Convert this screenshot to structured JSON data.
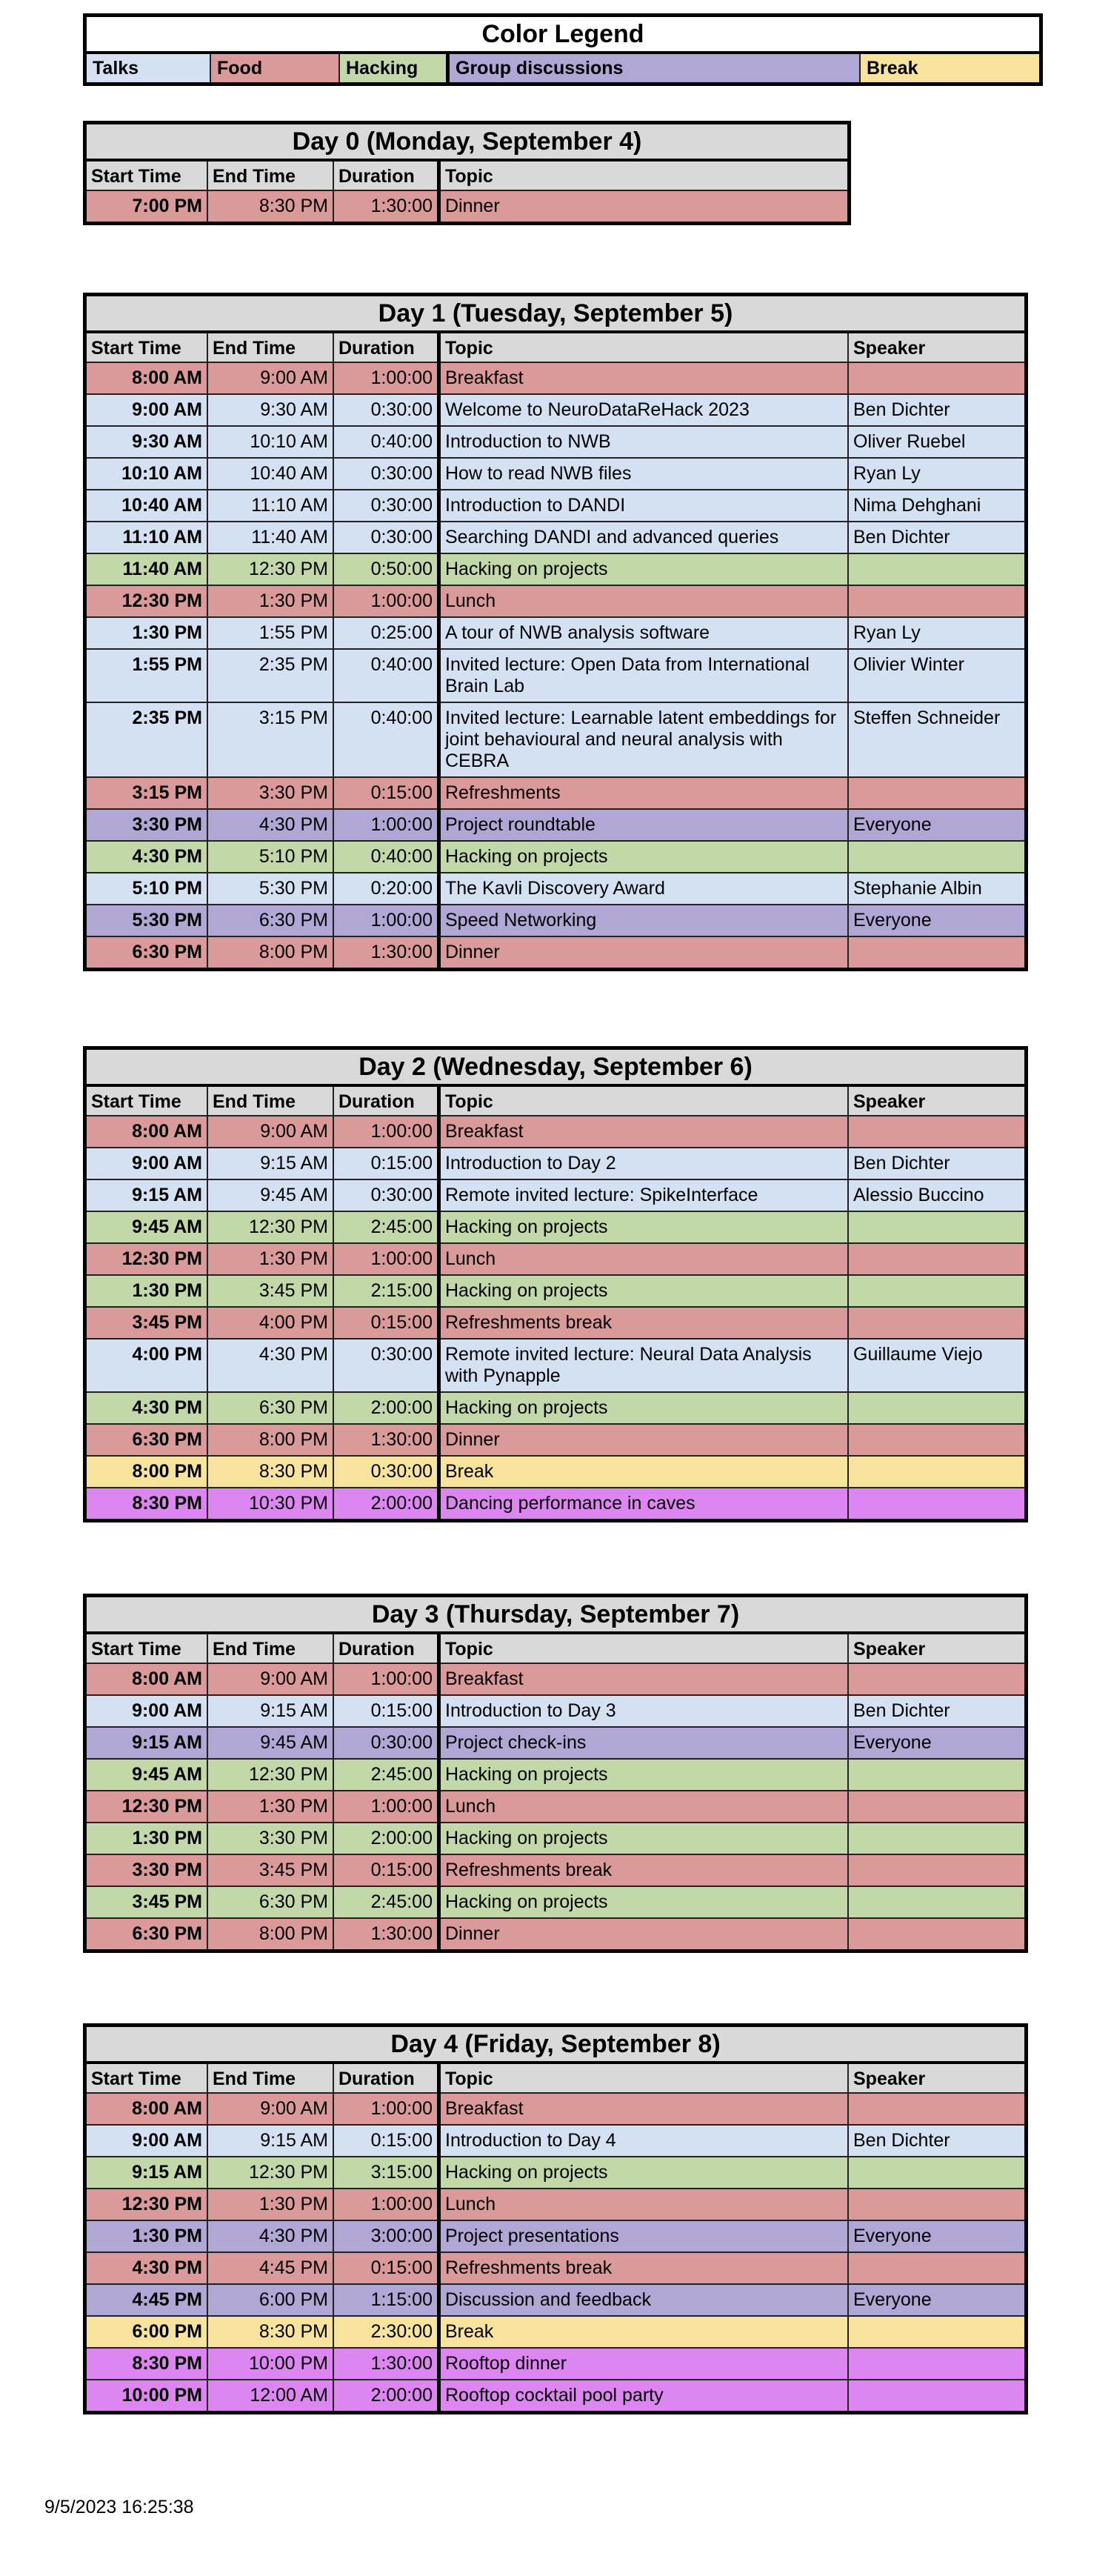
{
  "colors": {
    "talks": "#d3e1f2",
    "food": "#d99a99",
    "hacking": "#c2d8a8",
    "group": "#b0a7d4",
    "break": "#f8e39d",
    "party": "#dd86f2",
    "header": "#d9d9d9"
  },
  "legend": {
    "title": "Color Legend",
    "items": [
      {
        "label": "Talks",
        "category": "talks"
      },
      {
        "label": "Food",
        "category": "food"
      },
      {
        "label": "Hacking",
        "category": "hacking"
      },
      {
        "label": "Group discussions",
        "category": "group"
      },
      {
        "label": "Break",
        "category": "break"
      }
    ]
  },
  "columns": [
    "Start Time",
    "End Time",
    "Duration",
    "Topic",
    "Speaker"
  ],
  "days": [
    {
      "title": "Day 0 (Monday, September 4)",
      "has_speaker": false,
      "rows": [
        [
          "7:00 PM",
          "8:30 PM",
          "1:30:00",
          "Dinner",
          "",
          "food"
        ]
      ]
    },
    {
      "title": "Day 1 (Tuesday, September 5)",
      "has_speaker": true,
      "rows": [
        [
          "8:00 AM",
          "9:00 AM",
          "1:00:00",
          "Breakfast",
          "",
          "food"
        ],
        [
          "9:00 AM",
          "9:30 AM",
          "0:30:00",
          "Welcome to NeuroDataReHack 2023",
          "Ben Dichter",
          "talks"
        ],
        [
          "9:30 AM",
          "10:10 AM",
          "0:40:00",
          "Introduction to NWB",
          "Oliver Ruebel",
          "talks"
        ],
        [
          "10:10 AM",
          "10:40 AM",
          "0:30:00",
          "How to read NWB files",
          "Ryan Ly",
          "talks"
        ],
        [
          "10:40 AM",
          "11:10 AM",
          "0:30:00",
          "Introduction to DANDI",
          "Nima Dehghani",
          "talks"
        ],
        [
          "11:10 AM",
          "11:40 AM",
          "0:30:00",
          "Searching DANDI and advanced queries",
          "Ben Dichter",
          "talks"
        ],
        [
          "11:40 AM",
          "12:30 PM",
          "0:50:00",
          "Hacking on projects",
          "",
          "hacking"
        ],
        [
          "12:30 PM",
          "1:30 PM",
          "1:00:00",
          "Lunch",
          "",
          "food"
        ],
        [
          "1:30 PM",
          "1:55 PM",
          "0:25:00",
          "A tour of NWB analysis software",
          "Ryan Ly",
          "talks"
        ],
        [
          "1:55 PM",
          "2:35 PM",
          "0:40:00",
          "Invited lecture: Open Data from International Brain Lab",
          "Olivier Winter",
          "talks"
        ],
        [
          "2:35 PM",
          "3:15 PM",
          "0:40:00",
          "Invited lecture: Learnable latent embeddings for joint behavioural and neural analysis with CEBRA",
          "Steffen Schneider",
          "talks"
        ],
        [
          "3:15 PM",
          "3:30 PM",
          "0:15:00",
          "Refreshments",
          "",
          "food"
        ],
        [
          "3:30 PM",
          "4:30 PM",
          "1:00:00",
          "Project roundtable",
          "Everyone",
          "group"
        ],
        [
          "4:30 PM",
          "5:10 PM",
          "0:40:00",
          "Hacking on projects",
          "",
          "hacking"
        ],
        [
          "5:10 PM",
          "5:30 PM",
          "0:20:00",
          "The Kavli Discovery Award",
          "Stephanie Albin",
          "talks"
        ],
        [
          "5:30 PM",
          "6:30 PM",
          "1:00:00",
          "Speed Networking",
          "Everyone",
          "group"
        ],
        [
          "6:30 PM",
          "8:00 PM",
          "1:30:00",
          "Dinner",
          "",
          "food"
        ]
      ]
    },
    {
      "title": "Day 2 (Wednesday, September 6)",
      "has_speaker": true,
      "rows": [
        [
          "8:00 AM",
          "9:00 AM",
          "1:00:00",
          "Breakfast",
          "",
          "food"
        ],
        [
          "9:00 AM",
          "9:15 AM",
          "0:15:00",
          "Introduction to Day 2",
          "Ben Dichter",
          "talks"
        ],
        [
          "9:15 AM",
          "9:45 AM",
          "0:30:00",
          "Remote invited lecture: SpikeInterface",
          "Alessio Buccino",
          "talks"
        ],
        [
          "9:45 AM",
          "12:30 PM",
          "2:45:00",
          "Hacking on projects",
          "",
          "hacking"
        ],
        [
          "12:30 PM",
          "1:30 PM",
          "1:00:00",
          "Lunch",
          "",
          "food"
        ],
        [
          "1:30 PM",
          "3:45 PM",
          "2:15:00",
          "Hacking on projects",
          "",
          "hacking"
        ],
        [
          "3:45 PM",
          "4:00 PM",
          "0:15:00",
          "Refreshments break",
          "",
          "food"
        ],
        [
          "4:00 PM",
          "4:30 PM",
          "0:30:00",
          "Remote invited lecture: Neural Data Analysis with Pynapple",
          "Guillaume Viejo",
          "talks"
        ],
        [
          "4:30 PM",
          "6:30 PM",
          "2:00:00",
          "Hacking on projects",
          "",
          "hacking"
        ],
        [
          "6:30 PM",
          "8:00 PM",
          "1:30:00",
          "Dinner",
          "",
          "food"
        ],
        [
          "8:00 PM",
          "8:30 PM",
          "0:30:00",
          "Break",
          "",
          "break"
        ],
        [
          "8:30 PM",
          "10:30 PM",
          "2:00:00",
          "Dancing performance in caves",
          "",
          "party"
        ]
      ]
    },
    {
      "title": "Day 3 (Thursday, September 7)",
      "has_speaker": true,
      "rows": [
        [
          "8:00 AM",
          "9:00 AM",
          "1:00:00",
          "Breakfast",
          "",
          "food"
        ],
        [
          "9:00 AM",
          "9:15 AM",
          "0:15:00",
          "Introduction to Day 3",
          "Ben Dichter",
          "talks"
        ],
        [
          "9:15 AM",
          "9:45 AM",
          "0:30:00",
          "Project check-ins",
          "Everyone",
          "group"
        ],
        [
          "9:45 AM",
          "12:30 PM",
          "2:45:00",
          "Hacking on projects",
          "",
          "hacking"
        ],
        [
          "12:30 PM",
          "1:30 PM",
          "1:00:00",
          "Lunch",
          "",
          "food"
        ],
        [
          "1:30 PM",
          "3:30 PM",
          "2:00:00",
          "Hacking on projects",
          "",
          "hacking"
        ],
        [
          "3:30 PM",
          "3:45 PM",
          "0:15:00",
          "Refreshments break",
          "",
          "food"
        ],
        [
          "3:45 PM",
          "6:30 PM",
          "2:45:00",
          "Hacking on projects",
          "",
          "hacking"
        ],
        [
          "6:30 PM",
          "8:00 PM",
          "1:30:00",
          "Dinner",
          "",
          "food"
        ]
      ]
    },
    {
      "title": "Day 4 (Friday, September 8)",
      "has_speaker": true,
      "rows": [
        [
          "8:00 AM",
          "9:00 AM",
          "1:00:00",
          "Breakfast",
          "",
          "food"
        ],
        [
          "9:00 AM",
          "9:15 AM",
          "0:15:00",
          "Introduction to Day 4",
          "Ben Dichter",
          "talks"
        ],
        [
          "9:15 AM",
          "12:30 PM",
          "3:15:00",
          "Hacking on projects",
          "",
          "hacking"
        ],
        [
          "12:30 PM",
          "1:30 PM",
          "1:00:00",
          "Lunch",
          "",
          "food"
        ],
        [
          "1:30 PM",
          "4:30 PM",
          "3:00:00",
          "Project presentations",
          "Everyone",
          "group"
        ],
        [
          "4:30 PM",
          "4:45 PM",
          "0:15:00",
          "Refreshments break",
          "",
          "food"
        ],
        [
          "4:45 PM",
          "6:00 PM",
          "1:15:00",
          "Discussion and feedback",
          "Everyone",
          "group"
        ],
        [
          "6:00 PM",
          "8:30 PM",
          "2:30:00",
          "Break",
          "",
          "break"
        ],
        [
          "8:30 PM",
          "10:00 PM",
          "1:30:00",
          "Rooftop dinner",
          "",
          "party"
        ],
        [
          "10:00 PM",
          "12:00 AM",
          "2:00:00",
          "Rooftop cocktail pool party",
          "",
          "party"
        ]
      ]
    }
  ],
  "timestamp": "9/5/2023 16:25:38"
}
